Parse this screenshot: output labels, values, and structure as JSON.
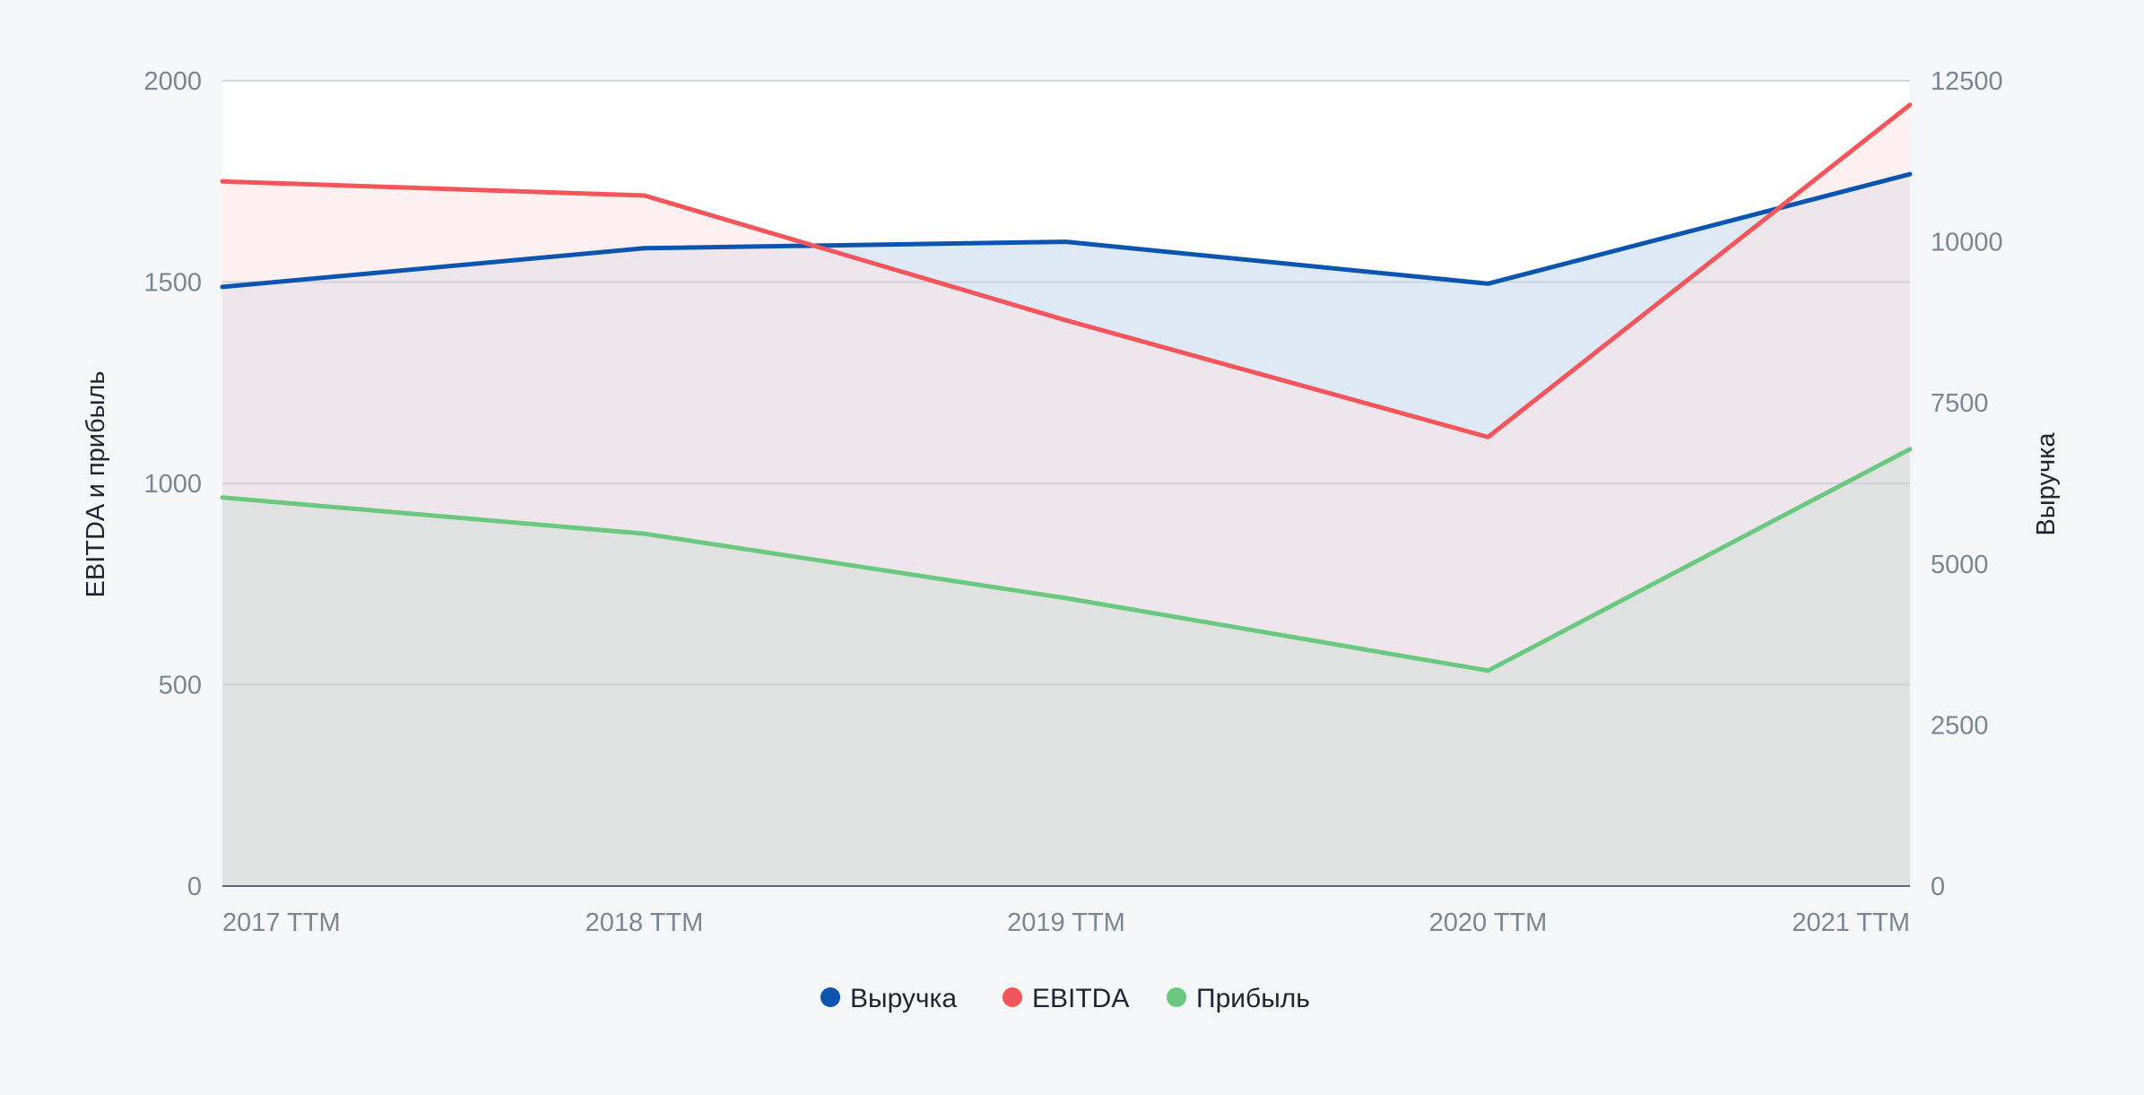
{
  "chart_data": {
    "type": "area",
    "categories": [
      "2017 TTM",
      "2018 TTM",
      "2019 TTM",
      "2020 TTM",
      "2021 TTM"
    ],
    "y_left": {
      "label": "EBITDA и прибыль",
      "lim": [
        0,
        2000
      ],
      "ticks": [
        0,
        500,
        1000,
        1500,
        2000
      ],
      "tick_labels": [
        "0",
        "500",
        "1000",
        "1500",
        "2000"
      ]
    },
    "y_right": {
      "label": "Выручка",
      "lim": [
        0,
        12500
      ],
      "ticks": [
        0,
        2500,
        5000,
        7500,
        10000,
        12500
      ],
      "tick_labels": [
        "0",
        "2500",
        "5000",
        "7500",
        "10000",
        "12500"
      ]
    },
    "series": [
      {
        "name": "Выручка",
        "axis": "right",
        "color": "#0b55b1",
        "fill": "#dfe8f5",
        "values": [
          9300,
          9900,
          10000,
          9350,
          11050
        ]
      },
      {
        "name": "EBITDA",
        "axis": "left",
        "color": "#f2555a",
        "fill": "#fbe4e6",
        "values": [
          1750,
          1715,
          1405,
          1115,
          1940
        ]
      },
      {
        "name": "Прибыль",
        "axis": "left",
        "color": "#6bc97f",
        "fill": "#dde0de",
        "values": [
          965,
          875,
          715,
          535,
          1085
        ]
      }
    ],
    "grid": true,
    "legend": "bottom"
  }
}
